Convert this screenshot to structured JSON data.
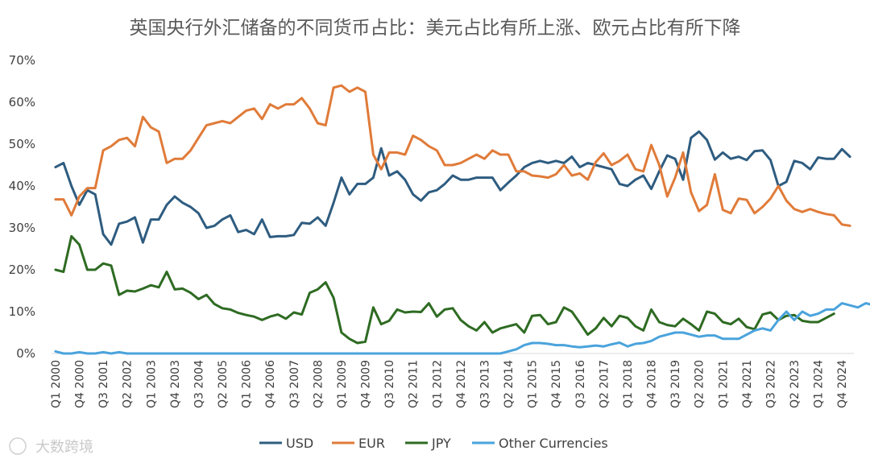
{
  "chart_data": {
    "type": "line",
    "title": "英国央行外汇储备的不同货币占比：美元占比有所上涨、欧元占比有所下降",
    "xlabel": "",
    "ylabel": "",
    "ylim": [
      0,
      70
    ],
    "yticks": [
      "0%",
      "10%",
      "20%",
      "30%",
      "40%",
      "50%",
      "60%",
      "70%"
    ],
    "grid": false,
    "legend_position": "bottom",
    "watermark": "大数跨境",
    "x_labels": [
      "Q1 2000",
      "Q4 2000",
      "Q3 2001",
      "Q2 2002",
      "Q1 2003",
      "Q4 2003",
      "Q3 2004",
      "Q2 2005",
      "Q1 2006",
      "Q4 2006",
      "Q3 2007",
      "Q2 2008",
      "Q1 2009",
      "Q4 2009",
      "Q3 2010",
      "Q2 2011",
      "Q1 2012",
      "Q4 2012",
      "Q3 2013",
      "Q2 2014",
      "Q1 2015",
      "Q4 2015",
      "Q3 2016",
      "Q2 2017",
      "Q1 2018",
      "Q4 2018",
      "Q3 2019",
      "Q2 2020",
      "Q1 2021",
      "Q4 2021",
      "Q3 2022",
      "Q2 2023",
      "Q1 2024",
      "Q4 2024"
    ],
    "series": [
      {
        "name": "USD",
        "color": "#2E5C80",
        "values": [
          44.5,
          45.5,
          40,
          35.5,
          39,
          38,
          28.5,
          26,
          31,
          31.5,
          32.5,
          26.5,
          32,
          32,
          35.5,
          37.5,
          36,
          35,
          33.5,
          30,
          30.5,
          32,
          33,
          29,
          29.5,
          28.5,
          32,
          27.8,
          28,
          28,
          28.3,
          31.2,
          31,
          32.5,
          30.5,
          36,
          42,
          38,
          40.5,
          40.5,
          42,
          49,
          42.5,
          43.5,
          41.5,
          38,
          36.5,
          38.5,
          39,
          40.5,
          42.5,
          41.5,
          41.5,
          42,
          42,
          42,
          39,
          40.8,
          42.5,
          44.5,
          45.5,
          46,
          45.5,
          46,
          45.5,
          47,
          44.5,
          45.5,
          45,
          44.5,
          44,
          40.5,
          40,
          41.5,
          42.5,
          39.3,
          43.5,
          47.3,
          46.5,
          41.5,
          51.5,
          53,
          51,
          46.3,
          48,
          46.5,
          47,
          46.2,
          48.3,
          48.5,
          46.2,
          40,
          41,
          46,
          45.5,
          44,
          46.8,
          46.5,
          46.5,
          48.8,
          47
        ]
      },
      {
        "name": "EUR",
        "color": "#E07B39",
        "values": [
          36.8,
          36.8,
          33,
          37.5,
          39.5,
          39.5,
          48.5,
          49.5,
          51,
          51.5,
          49.5,
          56.5,
          54,
          53,
          45.5,
          46.5,
          46.5,
          48.5,
          51.5,
          54.5,
          55,
          55.5,
          55,
          56.5,
          58,
          58.5,
          56,
          59.5,
          58.5,
          59.5,
          59.5,
          61,
          58.5,
          55,
          54.5,
          63.5,
          64,
          62.5,
          63.5,
          62.5,
          47.5,
          44,
          48,
          48,
          47.5,
          52,
          51,
          49.5,
          48.5,
          45,
          45,
          45.5,
          46.5,
          47.5,
          46.5,
          48.5,
          47.5,
          47.5,
          43.5,
          43.5,
          42.5,
          42.3,
          42,
          42.8,
          45,
          42.5,
          43,
          41.5,
          45.7,
          47.8,
          45,
          46,
          47.5,
          44,
          43.5,
          49.8,
          45,
          37.5,
          42,
          48,
          38.5,
          34,
          35.5,
          42.8,
          34.3,
          33.5,
          37,
          36.7,
          33.5,
          35,
          37,
          40,
          36.5,
          34.5,
          33.8,
          34.5,
          33.8,
          33.3,
          33,
          30.8,
          30.5
        ]
      },
      {
        "name": "JPY",
        "color": "#2E6B22",
        "values": [
          20,
          19.5,
          28,
          26,
          20,
          20,
          21.5,
          21,
          14,
          15,
          14.8,
          15.5,
          16.3,
          15.8,
          19.5,
          15.3,
          15.5,
          14.5,
          13,
          14,
          11.8,
          10.8,
          10.5,
          9.7,
          9.2,
          8.8,
          8,
          8.8,
          9.3,
          8.3,
          9.8,
          9.3,
          14.5,
          15.3,
          17,
          13.3,
          5,
          3.5,
          2.5,
          2.8,
          11,
          7,
          7.8,
          10.5,
          9.8,
          10,
          9.9,
          12,
          8.8,
          10.5,
          10.8,
          8,
          6.5,
          5.5,
          7.5,
          5,
          6,
          6.5,
          7,
          5,
          9,
          9.2,
          7,
          7.5,
          11,
          10,
          7.3,
          4.5,
          6,
          8.5,
          6.5,
          9,
          8.5,
          6.5,
          5.5,
          10.5,
          7.5,
          6.8,
          6.5,
          8.3,
          7,
          5.5,
          10,
          9.5,
          7.5,
          7,
          8.3,
          6.3,
          5.8,
          9.3,
          9.8,
          8,
          9,
          9.2,
          7.8,
          7.5,
          7.5,
          8.5,
          9.5
        ]
      },
      {
        "name": "Other Currencies",
        "color": "#4AA3DC",
        "values": [
          0.5,
          0,
          0,
          0.3,
          0,
          0,
          0.3,
          0,
          0.3,
          0,
          0,
          0,
          0,
          0,
          0,
          0,
          0,
          0,
          0,
          0,
          0,
          0,
          0,
          0,
          0,
          0,
          0,
          0,
          0,
          0,
          0,
          0,
          0,
          0,
          0,
          0,
          0,
          0,
          0,
          0,
          0,
          0,
          0,
          0,
          0,
          0,
          0,
          0,
          0,
          0,
          0,
          0,
          0,
          0,
          0,
          0,
          0,
          0.5,
          1,
          2,
          2.5,
          2.5,
          2.3,
          2,
          2,
          1.7,
          1.5,
          1.7,
          1.9,
          1.7,
          2.2,
          2.6,
          1.7,
          2.3,
          2.5,
          3,
          4,
          4.5,
          5,
          5,
          4.5,
          4,
          4.3,
          4.3,
          3.5,
          3.5,
          3.5,
          4.5,
          5.5,
          6,
          5.5,
          8,
          10,
          8,
          10,
          9,
          9.5,
          10.5,
          10.5,
          12,
          11.5,
          11,
          12,
          11.5,
          12.5,
          13,
          11.5,
          13
        ]
      }
    ]
  }
}
